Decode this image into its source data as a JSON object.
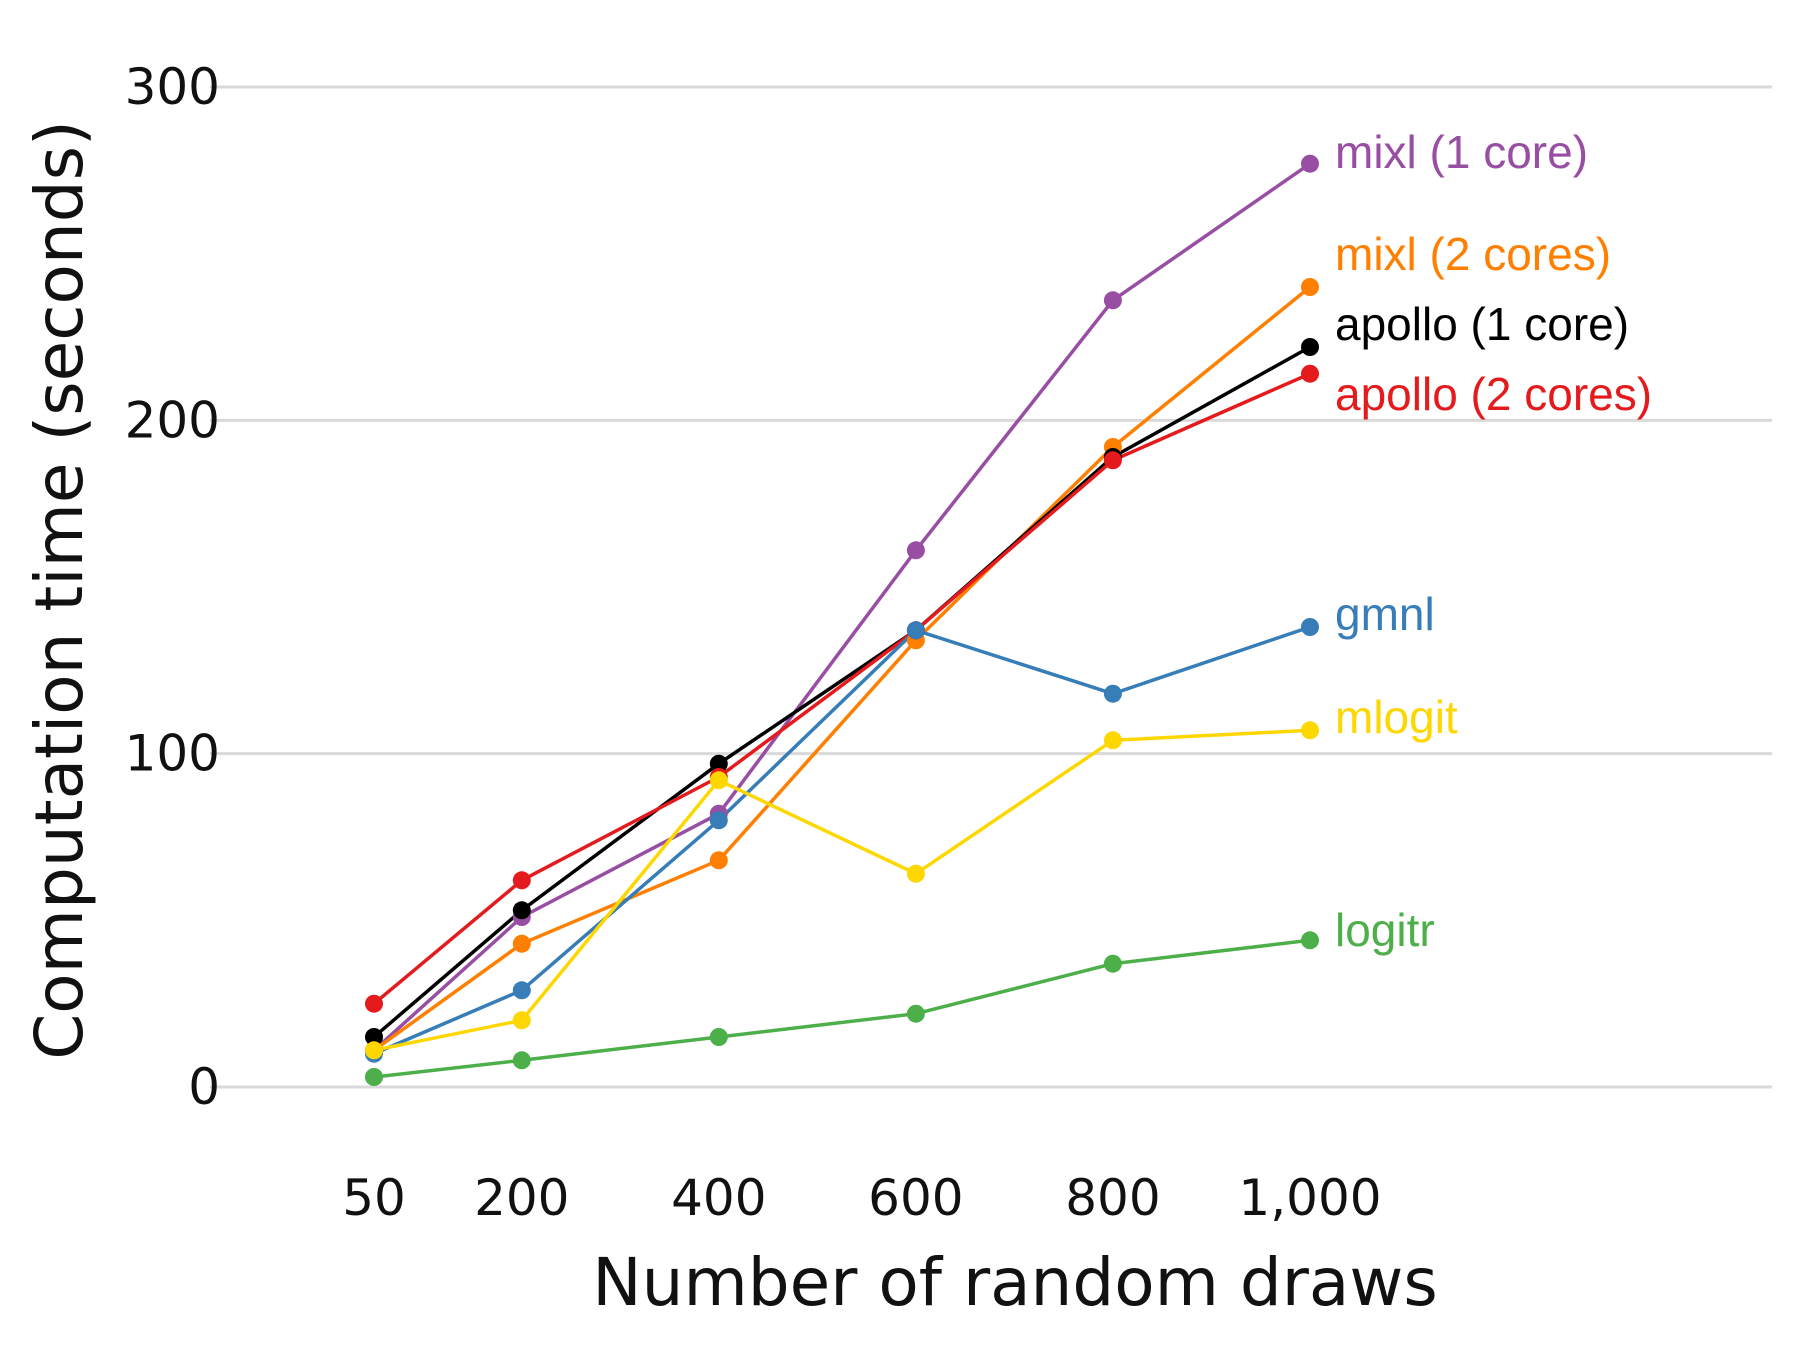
{
  "chart_data": {
    "type": "line",
    "xlabel": "Number of random draws",
    "ylabel": "Computation time (seconds)",
    "x": [
      50,
      200,
      400,
      600,
      800,
      1000
    ],
    "x_tick_labels": [
      "50",
      "200",
      "400",
      "600",
      "800",
      "1,000"
    ],
    "y_ticks": [
      0,
      100,
      200,
      300
    ],
    "y_tick_labels": [
      "0",
      "100",
      "200",
      "300"
    ],
    "ylim": [
      0,
      300
    ],
    "grid": "horizontal",
    "legend": "direct labels at line ends",
    "series": [
      {
        "name": "mixl (1 core)",
        "color": "#984EA3",
        "values": [
          11,
          51,
          82,
          161,
          236,
          277
        ]
      },
      {
        "name": "mixl (2 cores)",
        "color": "#FF7F00",
        "values": [
          11,
          43,
          68,
          134,
          192,
          240
        ]
      },
      {
        "name": "apollo (1 core)",
        "color": "#000000",
        "values": [
          15,
          53,
          97,
          137,
          189,
          222
        ]
      },
      {
        "name": "apollo (2 cores)",
        "color": "#E41A1C",
        "values": [
          25,
          62,
          93,
          137,
          188,
          214
        ]
      },
      {
        "name": "gmnl",
        "color": "#377EB8",
        "values": [
          10,
          29,
          80,
          137,
          118,
          138
        ]
      },
      {
        "name": "mlogit",
        "color": "#FFD700",
        "values": [
          11,
          20,
          92,
          64,
          104,
          107
        ]
      },
      {
        "name": "logitr",
        "color": "#4DAF4A",
        "values": [
          3,
          8,
          15,
          22,
          37,
          44
        ]
      }
    ]
  }
}
